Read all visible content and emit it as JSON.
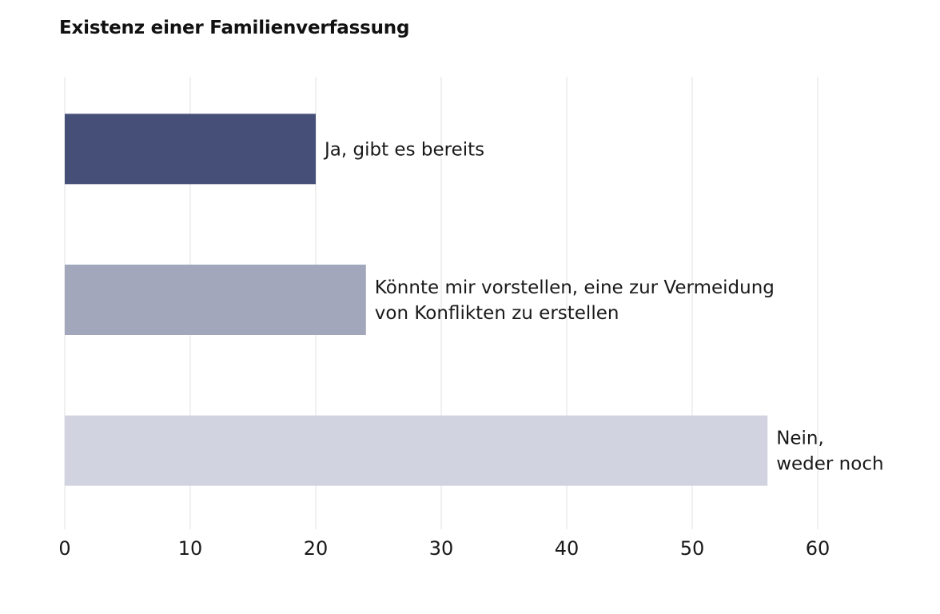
{
  "chart_data": {
    "type": "bar",
    "orientation": "horizontal",
    "title": "Existenz einer Familienverfassung",
    "xlabel": "",
    "ylabel": "",
    "xlim": [
      0,
      60
    ],
    "xticks": [
      0,
      10,
      20,
      30,
      40,
      50,
      60
    ],
    "grid": true,
    "legend": "none",
    "categories": [
      {
        "label": [
          "Ja, gibt es bereits"
        ],
        "value": 20,
        "color": "#464f78"
      },
      {
        "label": [
          "Könnte mir vorstellen, eine zur Vermeidung",
          "von Konflikten zu erstellen"
        ],
        "value": 24,
        "color": "#a2a7bb"
      },
      {
        "label": [
          "Nein,",
          "weder noch"
        ],
        "value": 56,
        "color": "#d1d3e0"
      }
    ]
  }
}
